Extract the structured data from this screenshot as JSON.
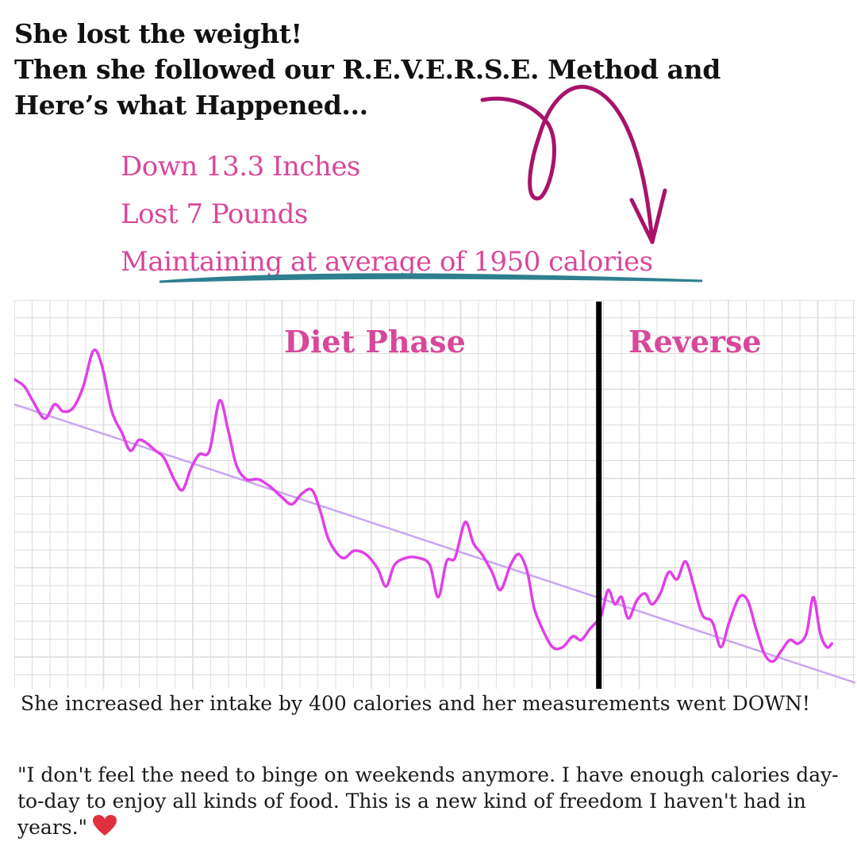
{
  "headline": {
    "line1": "She lost the weight!",
    "line2": "Then she followed our R.E.V.E.R.S.E. Method and",
    "line3": "Here’s what Happened..."
  },
  "stats": [
    "Down 13.3 Inches",
    "Lost 7 Pounds",
    "Maintaining at average of 1950 calories"
  ],
  "colors": {
    "accent_pink": "#d9479a",
    "arrow_magenta": "#a8136a",
    "underline_teal": "#2e7f8f",
    "series_line": "#e040e8",
    "trend_line": "#c9a6ee",
    "divider": "#000000",
    "grid": "#dcdcdc",
    "heart": "#e0303f"
  },
  "icons": {
    "heart": "heart-icon",
    "arrow": "curly-arrow-icon"
  },
  "chart_data": {
    "type": "line",
    "grid": true,
    "annotations": [
      "Diet Phase",
      "Reverse"
    ],
    "phase_boundary_x": 0.695,
    "x_range": [
      0,
      1
    ],
    "y_range": [
      0,
      1
    ],
    "series": [
      {
        "kind": "daily",
        "points": [
          [
            0.0,
            0.8
          ],
          [
            0.012,
            0.78
          ],
          [
            0.022,
            0.74
          ],
          [
            0.036,
            0.69
          ],
          [
            0.048,
            0.73
          ],
          [
            0.058,
            0.71
          ],
          [
            0.07,
            0.72
          ],
          [
            0.082,
            0.78
          ],
          [
            0.094,
            0.88
          ],
          [
            0.104,
            0.84
          ],
          [
            0.116,
            0.71
          ],
          [
            0.128,
            0.65
          ],
          [
            0.138,
            0.6
          ],
          [
            0.148,
            0.63
          ],
          [
            0.158,
            0.62
          ],
          [
            0.168,
            0.6
          ],
          [
            0.178,
            0.58
          ],
          [
            0.19,
            0.52
          ],
          [
            0.2,
            0.49
          ],
          [
            0.21,
            0.55
          ],
          [
            0.22,
            0.59
          ],
          [
            0.232,
            0.6
          ],
          [
            0.244,
            0.74
          ],
          [
            0.254,
            0.66
          ],
          [
            0.264,
            0.56
          ],
          [
            0.276,
            0.52
          ],
          [
            0.29,
            0.52
          ],
          [
            0.304,
            0.5
          ],
          [
            0.318,
            0.47
          ],
          [
            0.33,
            0.45
          ],
          [
            0.342,
            0.48
          ],
          [
            0.354,
            0.49
          ],
          [
            0.364,
            0.43
          ],
          [
            0.374,
            0.35
          ],
          [
            0.39,
            0.3
          ],
          [
            0.404,
            0.32
          ],
          [
            0.418,
            0.31
          ],
          [
            0.432,
            0.27
          ],
          [
            0.442,
            0.22
          ],
          [
            0.452,
            0.28
          ],
          [
            0.466,
            0.3
          ],
          [
            0.48,
            0.3
          ],
          [
            0.494,
            0.28
          ],
          [
            0.504,
            0.19
          ],
          [
            0.514,
            0.29
          ],
          [
            0.524,
            0.3
          ],
          [
            0.536,
            0.4
          ],
          [
            0.546,
            0.34
          ],
          [
            0.556,
            0.31
          ],
          [
            0.568,
            0.26
          ],
          [
            0.578,
            0.21
          ],
          [
            0.59,
            0.28
          ],
          [
            0.6,
            0.31
          ],
          [
            0.61,
            0.26
          ],
          [
            0.618,
            0.16
          ],
          [
            0.628,
            0.1
          ],
          [
            0.64,
            0.05
          ],
          [
            0.652,
            0.05
          ],
          [
            0.664,
            0.08
          ],
          [
            0.674,
            0.07
          ],
          [
            0.684,
            0.1
          ],
          [
            0.692,
            0.12
          ],
          [
            0.698,
            0.14
          ],
          [
            0.706,
            0.21
          ],
          [
            0.714,
            0.17
          ],
          [
            0.722,
            0.19
          ],
          [
            0.73,
            0.13
          ],
          [
            0.74,
            0.18
          ],
          [
            0.75,
            0.2
          ],
          [
            0.758,
            0.17
          ],
          [
            0.768,
            0.2
          ],
          [
            0.778,
            0.26
          ],
          [
            0.788,
            0.24
          ],
          [
            0.798,
            0.29
          ],
          [
            0.808,
            0.22
          ],
          [
            0.818,
            0.14
          ],
          [
            0.83,
            0.12
          ],
          [
            0.84,
            0.05
          ],
          [
            0.85,
            0.12
          ],
          [
            0.862,
            0.19
          ],
          [
            0.872,
            0.18
          ],
          [
            0.882,
            0.1
          ],
          [
            0.892,
            0.03
          ],
          [
            0.902,
            0.01
          ],
          [
            0.912,
            0.04
          ],
          [
            0.922,
            0.07
          ],
          [
            0.932,
            0.06
          ],
          [
            0.942,
            0.09
          ],
          [
            0.95,
            0.19
          ],
          [
            0.958,
            0.09
          ],
          [
            0.966,
            0.05
          ],
          [
            0.972,
            0.06
          ]
        ]
      },
      {
        "kind": "trend",
        "points": [
          [
            0.0,
            0.73
          ],
          [
            1.0,
            -0.05
          ]
        ]
      }
    ]
  },
  "caption": "She increased her intake by 400 calories and her measurements went DOWN!",
  "quote": "\"I don't feel the need to binge on weekends anymore. I have enough calories day-to-day to enjoy all kinds of food. This is a new kind of freedom I haven't had in years.\""
}
